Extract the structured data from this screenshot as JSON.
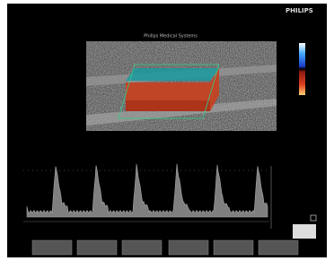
{
  "header": {
    "brand": "PHILIPS",
    "system": "Philips Medical Systems"
  }
}
